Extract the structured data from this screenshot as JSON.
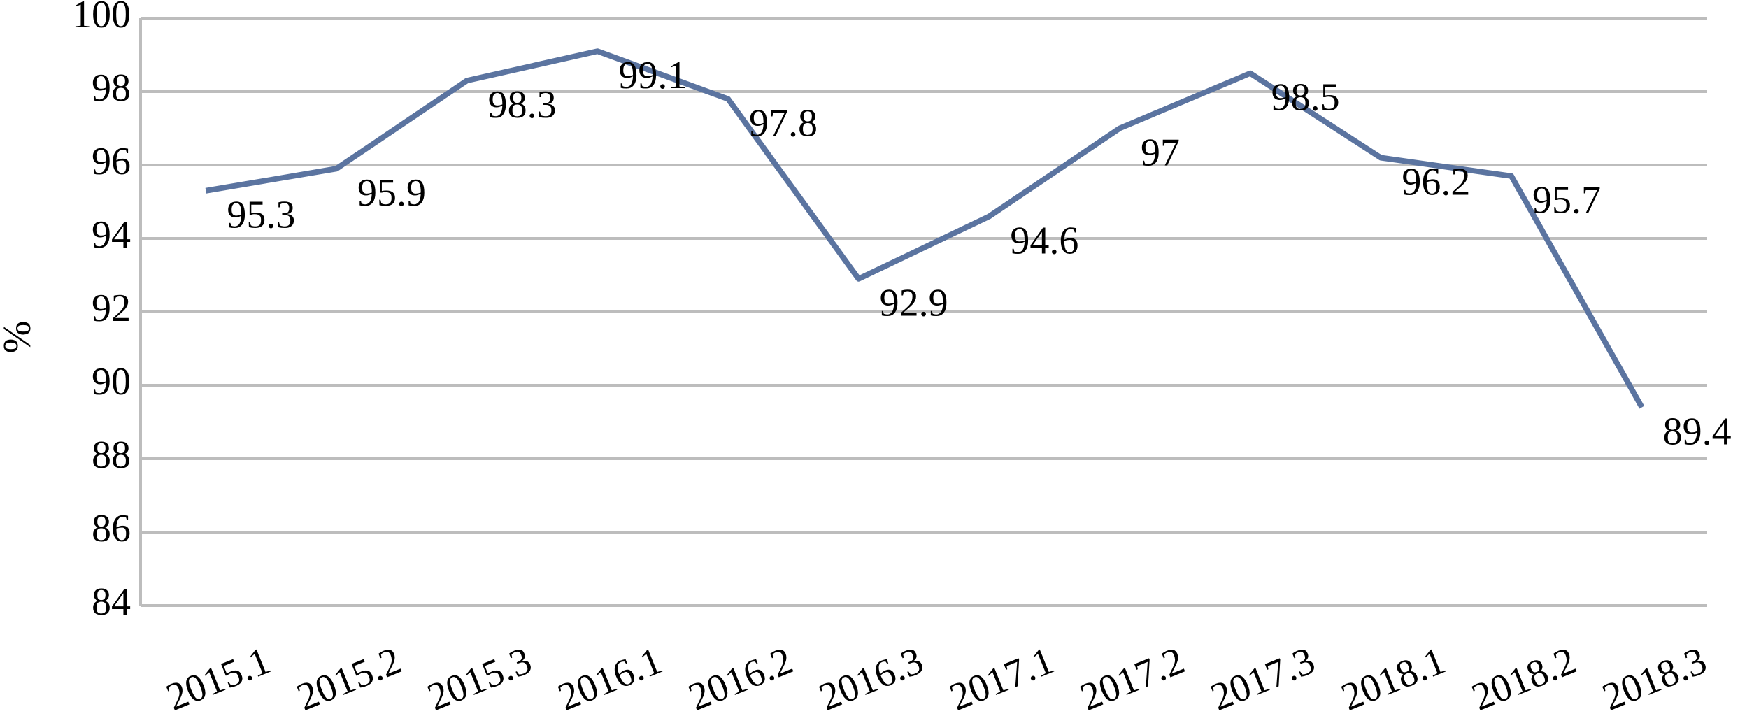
{
  "chart_data": {
    "type": "line",
    "y_label": "%",
    "categories": [
      "2015.1",
      "2015.2",
      "2015.3",
      "2016.1",
      "2016.2",
      "2016.3",
      "2017.1",
      "2017.2",
      "2017.3",
      "2018.1",
      "2018.2",
      "2018.3"
    ],
    "series": [
      {
        "color": "#5b74a0",
        "values": [
          95.3,
          95.9,
          98.3,
          99.1,
          97.8,
          92.9,
          94.6,
          97,
          98.5,
          96.2,
          95.7,
          89.4
        ]
      }
    ],
    "ylim": [
      84,
      100
    ],
    "yticks": [
      84,
      86,
      88,
      90,
      92,
      94,
      96,
      98,
      100
    ],
    "grid": true
  }
}
